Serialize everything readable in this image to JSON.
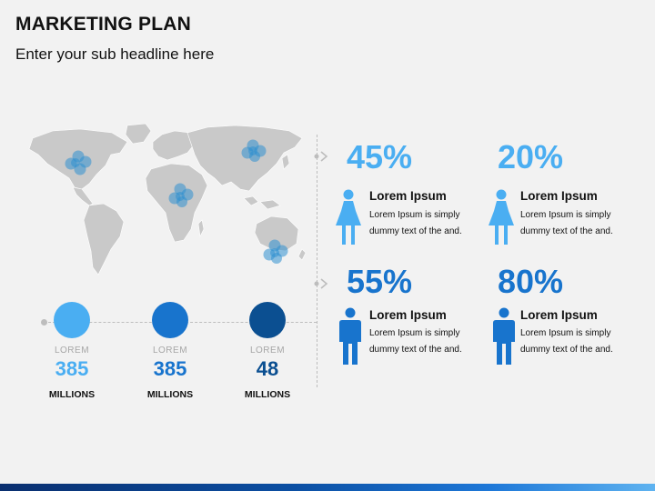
{
  "header": {
    "title": "MARKETING PLAN",
    "subtitle": "Enter your sub headline here"
  },
  "colors": {
    "light_blue": "#4aaef2",
    "mid_blue": "#1874cd",
    "dark_blue": "#0b4f91",
    "map_gray": "#c7c7c7",
    "marker": "#2f8fcf"
  },
  "stats": [
    {
      "label": "LOREM",
      "value": "385",
      "unit": "MILLIONS",
      "color": "#4aaef2"
    },
    {
      "label": "LOREM",
      "value": "385",
      "unit": "MILLIONS",
      "color": "#1874cd"
    },
    {
      "label": "LOREM",
      "value": "48",
      "unit": "MILLIONS",
      "color": "#0b4f91"
    }
  ],
  "items": [
    {
      "percent": "45%",
      "title": "Lorem Ipsum",
      "desc": "Lorem Ipsum is simply dummy text of the and.",
      "icon": "female-person-icon",
      "color": "#4aaef2"
    },
    {
      "percent": "20%",
      "title": "Lorem Ipsum",
      "desc": "Lorem Ipsum is simply dummy text of the and.",
      "icon": "female-person-icon",
      "color": "#4aaef2"
    },
    {
      "percent": "55%",
      "title": "Lorem Ipsum",
      "desc": "Lorem Ipsum is simply dummy text of the and.",
      "icon": "male-person-icon",
      "color": "#1874cd"
    },
    {
      "percent": "80%",
      "title": "Lorem Ipsum",
      "desc": "Lorem Ipsum is simply dummy text of the and.",
      "icon": "male-person-icon",
      "color": "#1874cd"
    }
  ],
  "map": {
    "icon": "world-map-icon",
    "marker_icon": "location-cluster-icon"
  }
}
